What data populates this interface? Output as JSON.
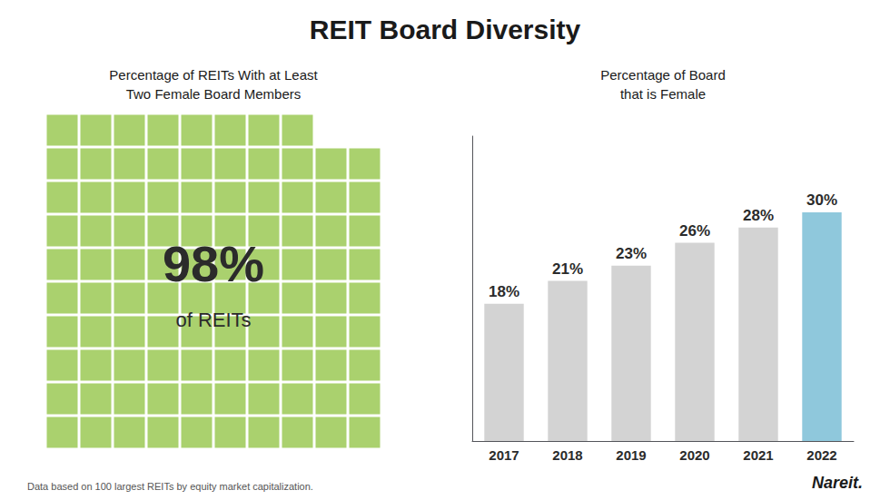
{
  "title": "REIT Board Diversity",
  "annotations": [
    "Data based on 100 largest REITs by equity market capitalization.",
    "Nareit."
  ],
  "chart_data": [
    {
      "type": "waffle",
      "title": "Percentage of REITs With at Least\nTwo Female Board Members",
      "values": [
        98
      ],
      "value_labels": [
        "98%"
      ],
      "annotations": [
        "of REITs"
      ],
      "color": "#aad16e"
    },
    {
      "type": "bar",
      "title": "Percentage of Board\nthat is Female",
      "categories": [
        "2017",
        "2018",
        "2019",
        "2020",
        "2021",
        "2022"
      ],
      "values": [
        18,
        21,
        23,
        26,
        28,
        30
      ],
      "value_labels": [
        "18%",
        "21%",
        "23%",
        "26%",
        "28%",
        "30%"
      ],
      "colors": [
        "#d3d3d3",
        "#d3d3d3",
        "#d3d3d3",
        "#d3d3d3",
        "#d3d3d3",
        "#8fc8dc"
      ],
      "ylim": [
        0,
        40
      ],
      "grid": false,
      "tick_labels": "x",
      "data_labels": true
    }
  ]
}
